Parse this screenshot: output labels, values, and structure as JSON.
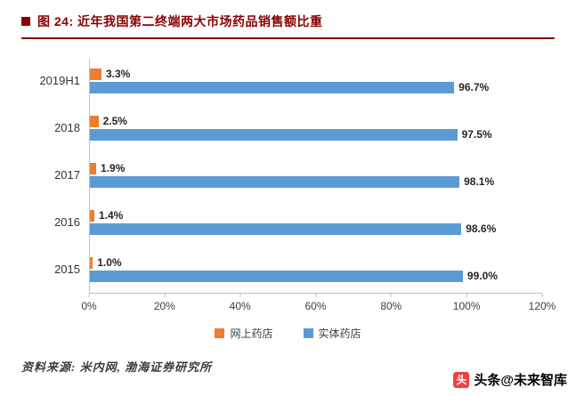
{
  "header": {
    "title": "图 24: 近年我国第二终端两大市场药品销售额比重",
    "accent_color": "#8B0000"
  },
  "chart_data": {
    "type": "bar",
    "orientation": "horizontal",
    "title": "近年我国第二终端两大市场药品销售额比重",
    "categories": [
      "2019H1",
      "2018",
      "2017",
      "2016",
      "2015"
    ],
    "series": [
      {
        "name": "网上药店",
        "color": "#ED7D31",
        "values": [
          3.3,
          2.5,
          1.9,
          1.4,
          1.0
        ]
      },
      {
        "name": "实体药店",
        "color": "#5B9BD5",
        "values": [
          96.7,
          97.5,
          98.1,
          98.6,
          99.0
        ]
      }
    ],
    "value_suffix": "%",
    "xlim": [
      0,
      120
    ],
    "x_ticks": [
      "0%",
      "20%",
      "40%",
      "60%",
      "80%",
      "100%",
      "120%"
    ],
    "grid": false,
    "legend_position": "bottom"
  },
  "footer": {
    "source": "资料来源: 米内网, 渤海证券研究所",
    "watermark": "头条@未来智库",
    "logo_glyph": "头",
    "logo_color": "#F04142"
  }
}
